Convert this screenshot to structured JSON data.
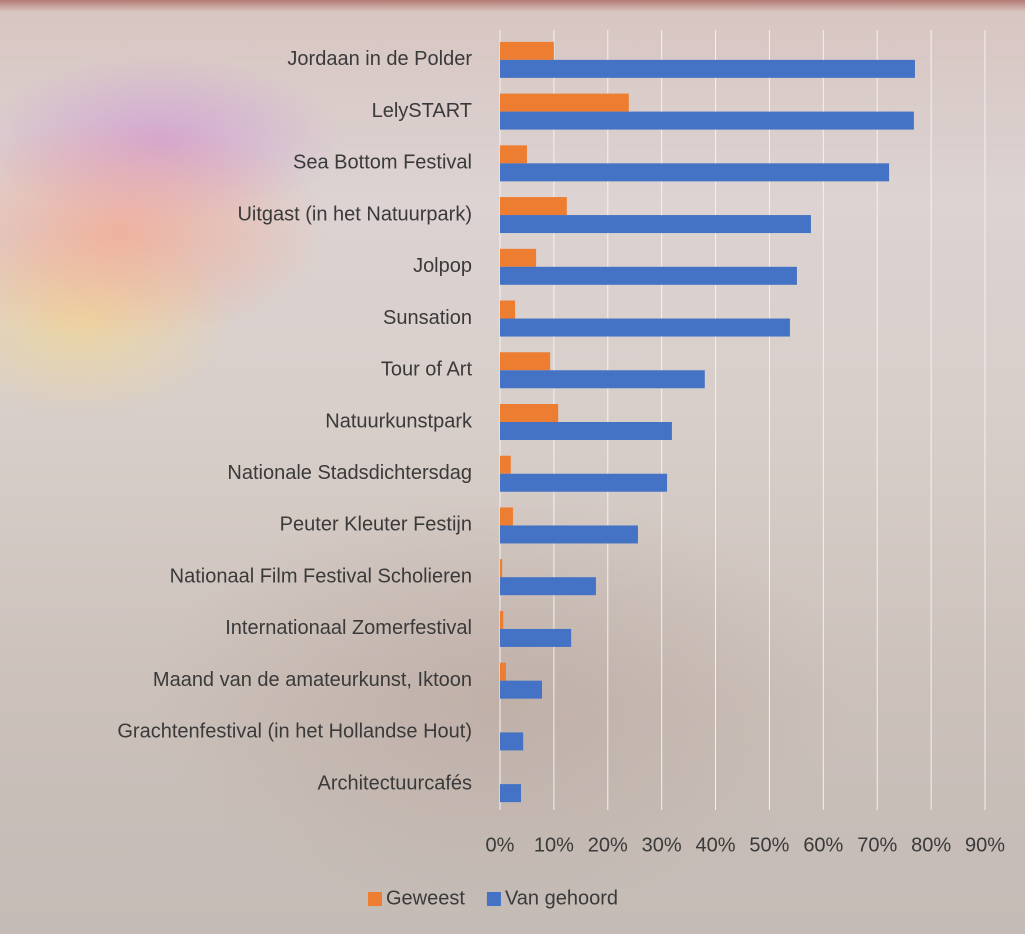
{
  "chart_data": {
    "type": "hbar",
    "categories": [
      "Jordaan in de Polder",
      "LelySTART",
      "Sea Bottom Festival",
      "Uitgast (in het Natuurpark)",
      "Jolpop",
      "Sunsation",
      "Tour of Art",
      "Natuurkunstpark",
      "Nationale Stadsdichtersdag",
      "Peuter Kleuter Festijn",
      "Nationaal Film Festival Scholieren",
      "Internationaal Zomerfestival",
      "Maand van de amateurkunst, Iktoon",
      "Grachtenfestival (in het Hollandse Hout)",
      "Architectuurcafés"
    ],
    "series": [
      {
        "name": "Geweest",
        "color": "#ed7d31",
        "values": [
          10.0,
          23.9,
          5.0,
          12.4,
          6.7,
          2.8,
          9.3,
          10.8,
          2.0,
          2.4,
          0.4,
          0.6,
          1.1,
          0,
          0
        ]
      },
      {
        "name": "Van gehoord",
        "color": "#4472c4",
        "values": [
          77.0,
          76.8,
          72.2,
          57.7,
          55.1,
          53.8,
          38.0,
          31.9,
          31.0,
          25.6,
          17.8,
          13.2,
          7.8,
          4.3,
          3.9
        ]
      }
    ],
    "xlim": [
      0,
      90
    ],
    "xticks": [
      {
        "value": 0,
        "label": "0%"
      },
      {
        "value": 10,
        "label": "10%"
      },
      {
        "value": 20,
        "label": "20%"
      },
      {
        "value": 30,
        "label": "30%"
      },
      {
        "value": 40,
        "label": "40%"
      },
      {
        "value": 50,
        "label": "50%"
      },
      {
        "value": 60,
        "label": "60%"
      },
      {
        "value": 70,
        "label": "70%"
      },
      {
        "value": 80,
        "label": "80%"
      },
      {
        "value": 90,
        "label": "90%"
      }
    ],
    "grid": true,
    "legend": "bottom"
  }
}
